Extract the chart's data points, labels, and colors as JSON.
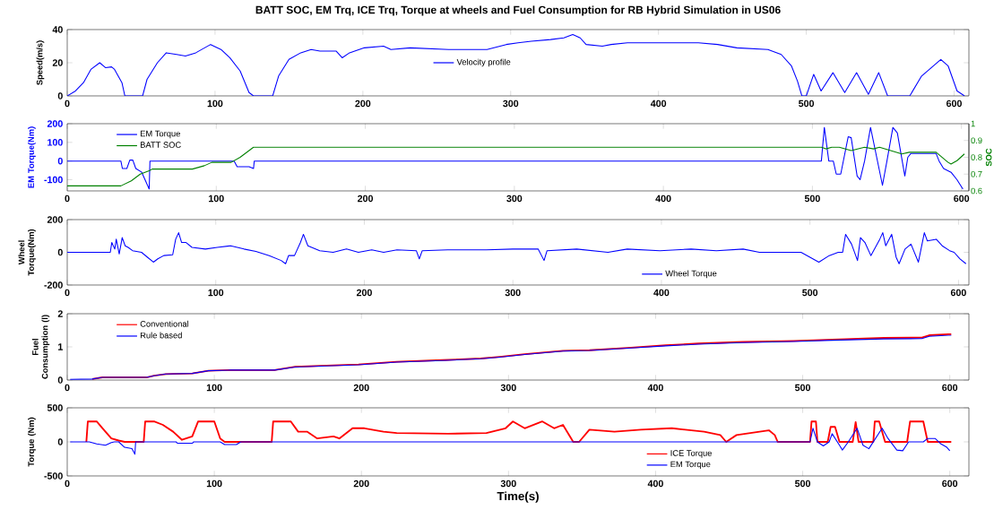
{
  "chart_data": [
    {
      "type": "line",
      "title": "BATT SOC, EM Trq, ICE Trq, Torque at wheels and Fuel Consumption for RB Hybrid Simulation in US06",
      "ylabel": "Speed(m/s)",
      "xlim": [
        0,
        610
      ],
      "xticks": [
        0,
        100,
        200,
        300,
        400,
        500,
        600
      ],
      "ylim": [
        0,
        40
      ],
      "yticks": [
        0,
        20,
        40
      ],
      "legend": "center",
      "series": [
        {
          "name": "Velocity profile",
          "color": "#0000ff",
          "x": [
            0,
            5.6,
            11,
            16,
            22,
            26,
            30,
            32,
            37,
            39,
            51,
            54,
            61,
            67,
            74,
            80,
            87,
            93,
            97,
            104,
            110,
            117,
            123,
            126,
            139,
            143,
            150,
            158,
            165,
            171,
            182,
            186,
            191,
            201,
            214,
            219,
            232,
            258,
            284,
            297,
            305,
            314,
            327,
            336,
            342,
            347,
            351,
            362,
            368,
            379,
            401,
            427,
            440,
            453,
            474,
            483,
            490,
            494,
            497,
            500,
            505,
            510,
            518,
            526,
            534,
            542,
            549,
            555,
            570,
            578,
            591,
            596,
            602,
            607
          ],
          "values": [
            0,
            3,
            8,
            16,
            20,
            17,
            17.5,
            16,
            8,
            0,
            0,
            10,
            20,
            26,
            25,
            24,
            26,
            29,
            31,
            28,
            23,
            15,
            2,
            0,
            0,
            12,
            22,
            26,
            28,
            27,
            27,
            23,
            26,
            29,
            30,
            28,
            29,
            28,
            28,
            31,
            32,
            33,
            34,
            35,
            37,
            35,
            31,
            30,
            31,
            32,
            32,
            32,
            31,
            29,
            28,
            25,
            18,
            9,
            0,
            0,
            13,
            3,
            14,
            2,
            14,
            1,
            14,
            0,
            0,
            12,
            22,
            18,
            3,
            0
          ]
        }
      ]
    },
    {
      "type": "line",
      "ylabel": "EM Torque(Nm)",
      "y2label": "SOC",
      "xlim": [
        0,
        605
      ],
      "xticks": [
        0,
        100,
        200,
        300,
        400,
        500,
        600
      ],
      "ylim": [
        -160,
        200
      ],
      "yticks": [
        -100,
        0,
        100,
        200
      ],
      "y2lim": [
        0.6,
        1
      ],
      "y2ticks": [
        0.6,
        0.7,
        0.8,
        0.9,
        1
      ],
      "legend": "top left",
      "series": [
        {
          "name": "EM Torque",
          "color": "#0000ff",
          "x": [
            0,
            36,
            37,
            40,
            42,
            44,
            46,
            50,
            55,
            55.5,
            112,
            114,
            122,
            125,
            125.5,
            506,
            508,
            511,
            514,
            516,
            519,
            524,
            526,
            530,
            532,
            535,
            539,
            547,
            550,
            554,
            557,
            562,
            564,
            566,
            583,
            585,
            588,
            593,
            597,
            601
          ],
          "values": [
            0,
            0,
            -40,
            -40,
            5,
            5,
            -40,
            -60,
            -150,
            0,
            0,
            -30,
            -30,
            -40,
            0,
            0,
            180,
            0,
            0,
            -70,
            -70,
            130,
            125,
            -80,
            -100,
            0,
            180,
            -130,
            0,
            180,
            150,
            -80,
            20,
            40,
            40,
            0,
            -40,
            -60,
            -100,
            -150
          ]
        },
        {
          "name": "BATT SOC",
          "color": "#008000",
          "axis": "y2",
          "x": [
            0,
            36,
            43,
            49,
            55,
            57,
            84,
            92,
            97,
            110,
            116,
            125,
            506,
            509,
            513,
            518,
            526,
            535,
            541,
            545,
            560,
            565,
            583,
            587,
            591,
            593,
            597,
            602
          ],
          "values": [
            0.63,
            0.63,
            0.66,
            0.7,
            0.72,
            0.73,
            0.73,
            0.75,
            0.77,
            0.77,
            0.8,
            0.86,
            0.86,
            0.85,
            0.86,
            0.86,
            0.84,
            0.86,
            0.85,
            0.86,
            0.82,
            0.83,
            0.83,
            0.8,
            0.77,
            0.76,
            0.78,
            0.82
          ]
        }
      ]
    },
    {
      "type": "line",
      "ylabel": "Wheel Torque(Nm)",
      "xlim": [
        0,
        607
      ],
      "xticks": [
        0,
        100,
        200,
        300,
        400,
        500,
        600
      ],
      "ylim": [
        -200,
        200
      ],
      "yticks": [
        -200,
        0,
        200
      ],
      "legend": "bottom",
      "series": [
        {
          "name": "Wheel Torque",
          "color": "#0000ff",
          "x": [
            0,
            29,
            30,
            32,
            33,
            35,
            37,
            39,
            41,
            44,
            50,
            54,
            58,
            61,
            65,
            71,
            73,
            75,
            77,
            80,
            84,
            93,
            101,
            110,
            119,
            127,
            136,
            144,
            147,
            149,
            153,
            157,
            159,
            162,
            170,
            179,
            188,
            196,
            205,
            213,
            222,
            235,
            237,
            239,
            256,
            282,
            300,
            317,
            321,
            323,
            343,
            364,
            377,
            399,
            420,
            437,
            455,
            466,
            494,
            500,
            506,
            513,
            519,
            522,
            524,
            528,
            532,
            534,
            537,
            541,
            547,
            549,
            551,
            555,
            558,
            560,
            564,
            568,
            573,
            577,
            579,
            585,
            589,
            594,
            597,
            601,
            605
          ],
          "values": [
            0,
            0,
            60,
            20,
            80,
            -10,
            90,
            40,
            30,
            10,
            0,
            -30,
            -60,
            -40,
            -20,
            -15,
            80,
            120,
            60,
            60,
            30,
            20,
            30,
            40,
            20,
            5,
            -20,
            -50,
            -70,
            -20,
            -20,
            60,
            110,
            40,
            10,
            0,
            20,
            0,
            15,
            0,
            15,
            10,
            -40,
            10,
            15,
            15,
            20,
            20,
            -50,
            10,
            20,
            0,
            20,
            10,
            20,
            10,
            20,
            0,
            0,
            -30,
            -60,
            -20,
            0,
            0,
            110,
            50,
            -50,
            90,
            60,
            -20,
            80,
            120,
            40,
            110,
            -30,
            -70,
            20,
            50,
            -60,
            120,
            70,
            80,
            40,
            10,
            0,
            -40,
            -70
          ]
        }
      ]
    },
    {
      "type": "line",
      "ylabel": "Fuel Consumption (l)",
      "xlim": [
        0,
        613
      ],
      "xticks": [
        0,
        100,
        200,
        300,
        400,
        500,
        600
      ],
      "ylim": [
        0,
        2
      ],
      "yticks": [
        0,
        1,
        2
      ],
      "legend": "top left",
      "series": [
        {
          "name": "Conventional",
          "color": "#ff0000",
          "x": [
            17,
            24,
            54,
            59,
            67,
            85,
            96,
            111,
            141,
            155,
            172,
            198,
            224,
            255,
            281,
            294,
            311,
            337,
            355,
            381,
            407,
            429,
            459,
            494,
            520,
            555,
            581,
            586,
            599,
            601
          ],
          "values": [
            0.03,
            0.08,
            0.08,
            0.13,
            0.18,
            0.2,
            0.28,
            0.3,
            0.3,
            0.4,
            0.43,
            0.47,
            0.55,
            0.6,
            0.65,
            0.7,
            0.78,
            0.88,
            0.9,
            0.97,
            1.05,
            1.1,
            1.15,
            1.18,
            1.22,
            1.27,
            1.28,
            1.35,
            1.38,
            1.38
          ]
        },
        {
          "name": "Rule based",
          "color": "#0000ff",
          "x": [
            2,
            17,
            24,
            54,
            59,
            67,
            85,
            96,
            111,
            141,
            155,
            172,
            198,
            224,
            255,
            281,
            294,
            311,
            337,
            355,
            381,
            407,
            429,
            459,
            494,
            520,
            555,
            581,
            586,
            599,
            601
          ],
          "values": [
            0.02,
            0.03,
            0.08,
            0.08,
            0.13,
            0.18,
            0.2,
            0.28,
            0.3,
            0.3,
            0.39,
            0.42,
            0.46,
            0.54,
            0.59,
            0.64,
            0.69,
            0.77,
            0.87,
            0.89,
            0.96,
            1.03,
            1.08,
            1.13,
            1.16,
            1.2,
            1.24,
            1.25,
            1.32,
            1.35,
            1.35
          ]
        }
      ]
    },
    {
      "type": "line",
      "xlabel": "Time(s)",
      "ylabel": "Torque (Nm)",
      "xlim": [
        0,
        613
      ],
      "xticks": [
        0,
        100,
        200,
        300,
        400,
        500,
        600
      ],
      "ylim": [
        -500,
        500
      ],
      "yticks": [
        -500,
        0,
        500
      ],
      "legend": "bottom",
      "series": [
        {
          "name": "ICE Torque",
          "color": "#ff0000",
          "x": [
            13,
            14,
            20,
            24,
            30,
            35,
            39,
            52,
            53,
            59,
            65,
            72,
            78,
            85,
            89,
            100,
            104,
            107,
            139,
            140,
            152,
            157,
            163,
            170,
            181,
            185,
            194,
            202,
            215,
            224,
            259,
            285,
            298,
            303,
            311,
            323,
            331,
            337,
            344,
            348,
            355,
            372,
            390,
            411,
            433,
            444,
            448,
            455,
            477,
            481,
            483,
            505,
            506,
            509,
            510,
            517,
            519,
            522,
            525,
            534,
            536,
            538,
            548,
            549,
            552,
            556,
            571,
            573,
            582,
            585,
            601
          ],
          "values": [
            0,
            300,
            300,
            200,
            50,
            20,
            0,
            0,
            300,
            300,
            250,
            150,
            30,
            80,
            300,
            300,
            50,
            0,
            0,
            300,
            300,
            150,
            150,
            50,
            80,
            50,
            200,
            200,
            150,
            130,
            120,
            130,
            200,
            300,
            200,
            300,
            200,
            250,
            0,
            0,
            180,
            150,
            180,
            200,
            150,
            100,
            0,
            100,
            170,
            100,
            0,
            0,
            300,
            300,
            0,
            0,
            220,
            220,
            0,
            0,
            290,
            0,
            0,
            300,
            300,
            0,
            0,
            300,
            300,
            0,
            0
          ]
        },
        {
          "name": "EM Torque",
          "color": "#0000ff",
          "x": [
            2,
            15,
            20,
            26,
            30,
            32,
            35,
            39,
            44,
            46,
            46.5,
            74,
            75,
            85,
            86,
            104,
            107,
            115,
            118,
            505,
            507,
            510,
            514,
            518,
            520,
            525,
            527,
            531,
            537,
            541,
            545,
            554,
            558,
            564,
            568,
            572,
            582,
            585,
            590,
            594,
            598,
            600
          ],
          "values": [
            0,
            0,
            -30,
            -50,
            -10,
            0,
            0,
            -80,
            -100,
            -180,
            0,
            0,
            -20,
            -20,
            0,
            0,
            -40,
            -40,
            0,
            0,
            200,
            0,
            -60,
            0,
            120,
            -50,
            -120,
            0,
            200,
            -50,
            -100,
            200,
            50,
            -120,
            -130,
            0,
            0,
            50,
            50,
            -30,
            -80,
            -130
          ]
        }
      ]
    }
  ]
}
